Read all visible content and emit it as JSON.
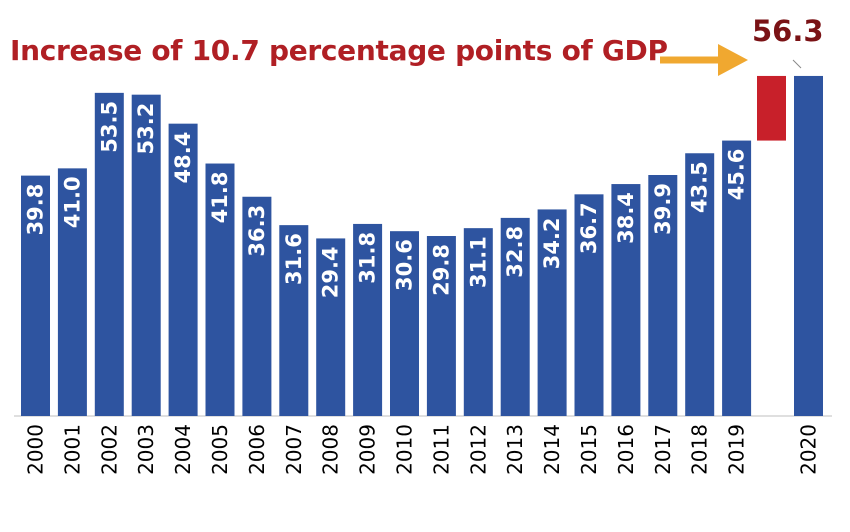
{
  "chart_data": {
    "type": "bar",
    "headline": "Increase of 10.7 percentage points of GDP",
    "categories": [
      "2000",
      "2001",
      "2002",
      "2003",
      "2004",
      "2005",
      "2006",
      "2007",
      "2008",
      "2009",
      "2010",
      "2011",
      "2012",
      "2013",
      "2014",
      "2015",
      "2016",
      "2017",
      "2018",
      "2019",
      "2020"
    ],
    "values": [
      39.8,
      41.0,
      53.5,
      53.2,
      48.4,
      41.8,
      36.3,
      31.6,
      29.4,
      31.8,
      30.6,
      29.8,
      31.1,
      32.8,
      34.2,
      36.7,
      38.4,
      39.9,
      43.5,
      45.6,
      56.3
    ],
    "value_labels": [
      "39.8",
      "41.0",
      "53.5",
      "53.2",
      "48.4",
      "41.8",
      "36.3",
      "31.6",
      "29.4",
      "31.8",
      "30.6",
      "29.8",
      "31.1",
      "32.8",
      "34.2",
      "36.7",
      "38.4",
      "39.9",
      "43.5",
      "45.6",
      "56.3"
    ],
    "increase": {
      "from": 45.6,
      "to": 56.3,
      "label": "Increase of 10.7 percentage points of GDP"
    },
    "total_label": "56.3",
    "colors": {
      "bar": "#2e54a0",
      "increase": "#c8202a",
      "headline": "#b01f24",
      "arrow": "#f0a830",
      "total": "#7a1215"
    },
    "grid": false,
    "legend": "none"
  }
}
